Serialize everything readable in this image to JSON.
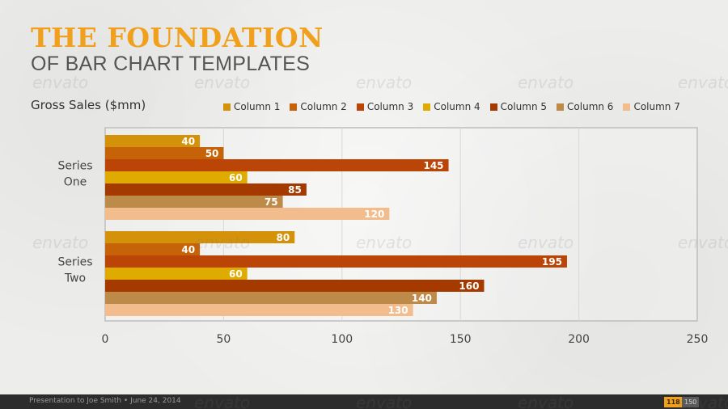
{
  "slide": {
    "title": "THE FOUNDATION",
    "subtitle": "OF BAR CHART TEMPLATES",
    "watermark_text": "envato"
  },
  "footer": {
    "presentation_text": "Presentation to Joe Smith • June 24, 2014",
    "page_number": "118",
    "page_total": "150"
  },
  "colors": {
    "title": "#f0a01c",
    "subtitle": "#555555",
    "footer_bg": "#2c2c2c"
  },
  "chart_data": {
    "type": "bar",
    "orientation": "horizontal",
    "title": "Gross Sales ($mm)",
    "categories": [
      "Series One",
      "Series Two"
    ],
    "series": [
      {
        "name": "Column 1",
        "color": "#d4920a",
        "values": [
          40,
          80
        ]
      },
      {
        "name": "Column 2",
        "color": "#c66208",
        "values": [
          50,
          40
        ]
      },
      {
        "name": "Column 3",
        "color": "#bb4506",
        "values": [
          145,
          195
        ]
      },
      {
        "name": "Column 4",
        "color": "#dfab00",
        "values": [
          60,
          60
        ]
      },
      {
        "name": "Column 5",
        "color": "#a43a00",
        "values": [
          85,
          160
        ]
      },
      {
        "name": "Column 6",
        "color": "#bd8a49",
        "values": [
          75,
          140
        ]
      },
      {
        "name": "Column 7",
        "color": "#f3bc8d",
        "values": [
          120,
          130
        ]
      }
    ],
    "xlim": [
      0,
      250
    ],
    "xticks": [
      0,
      50,
      100,
      150,
      200,
      250
    ],
    "grid": true,
    "legend_position": "top"
  }
}
